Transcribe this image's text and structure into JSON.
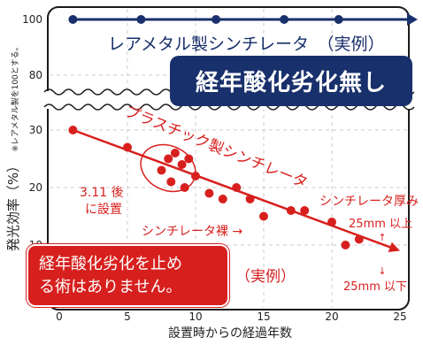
{
  "chart_data": {
    "type": "scatter",
    "xlabel": "設置時からの経過年数",
    "ylabel": "発光効率（%）",
    "ylabel_note": "※レアメタル製を100とする。",
    "xlim": [
      0,
      25
    ],
    "xticks": [
      0,
      5,
      10,
      15,
      20,
      25
    ],
    "yticks_upper": [
      100,
      80
    ],
    "yticks_lower": [
      30,
      20,
      10
    ],
    "axis_break": true,
    "series": [
      {
        "name": "レアメタル製シンチレータ",
        "label": "レアメタル製シンチレータ　（実例）",
        "color": "#18306b",
        "x": [
          1,
          6,
          11.5,
          16.5,
          20.5
        ],
        "y": [
          100,
          100,
          100,
          100,
          100
        ]
      },
      {
        "name": "プラスチック製シンチレータ",
        "label": "プラスチック製シンチレータ",
        "color": "#d7201e",
        "x": [
          5,
          7.5,
          8,
          8.2,
          8.5,
          9,
          9.2,
          9.5,
          10,
          11,
          12,
          13,
          14,
          15,
          17,
          18,
          20,
          21,
          22
        ],
        "y": [
          27,
          23,
          25,
          21,
          26,
          24,
          20,
          25,
          22,
          19,
          18,
          20,
          18,
          15,
          16,
          16,
          14,
          10,
          11
        ],
        "trend": {
          "x1": 1,
          "y1": 30,
          "x2": 25,
          "y2": 9
        }
      }
    ],
    "annotations": {
      "group_label_line1": "3.11 後",
      "group_label_line2": "に設置",
      "bare_label": "シンチレータ裸 →",
      "thickness_title": "シンチレータ厚み",
      "thickness_upper": "25mm 以上",
      "thickness_upper_arrow": "↑",
      "thickness_lower_arrow": "↓",
      "thickness_lower": "25mm 以下",
      "example_label": "（実例）"
    }
  },
  "banner": {
    "text": "経年酸化劣化無し"
  },
  "note": {
    "line1": "経年酸化劣化を止め",
    "line2": "る術はありません。"
  },
  "colors": {
    "navy": "#18306b",
    "red": "#d7201e",
    "frame": "#1a1a1a"
  }
}
